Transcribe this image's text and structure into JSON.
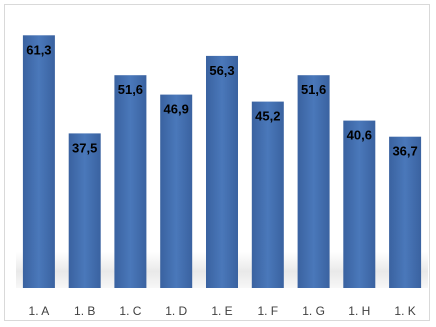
{
  "chart_data": {
    "type": "bar",
    "categories": [
      "1. A",
      "1. B",
      "1. C",
      "1. D",
      "1. E",
      "1. F",
      "1. G",
      "1. H",
      "1. K"
    ],
    "values": [
      61.3,
      37.5,
      51.6,
      46.9,
      56.3,
      45.2,
      51.6,
      40.6,
      36.7
    ],
    "value_labels": [
      "61,3",
      "37,5",
      "51,6",
      "46,9",
      "56,3",
      "45,2",
      "51,6",
      "40,6",
      "36,7"
    ],
    "title": "",
    "xlabel": "",
    "ylabel": "",
    "ylim": [
      0,
      65
    ],
    "grid": false,
    "legend": "none",
    "bar_color": "#4a78ba",
    "bar_color_dark": "#3a62a0",
    "label_position": "inside-top"
  }
}
